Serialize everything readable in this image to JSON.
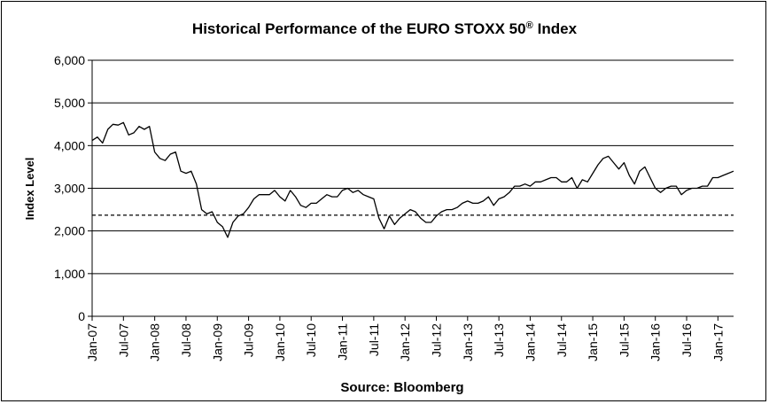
{
  "chart_data": {
    "type": "line",
    "title": "Historical Performance of the EURO STOXX 50",
    "title_superscript": "®",
    "title_suffix": "Index",
    "ylabel": "Index Level",
    "xlabel": "Source: Bloomberg",
    "ylim": [
      0,
      6000
    ],
    "y_ticks": [
      "0",
      "1,000",
      "2,000",
      "3,000",
      "4,000",
      "5,000",
      "6,000"
    ],
    "y_tick_values": [
      0,
      1000,
      2000,
      3000,
      4000,
      5000,
      6000
    ],
    "x_ticks": [
      "Jan-07",
      "Jul-07",
      "Jan-08",
      "Jul-08",
      "Jan-09",
      "Jul-09",
      "Jan-10",
      "Jul-10",
      "Jan-11",
      "Jul-11",
      "Jan-12",
      "Jul-12",
      "Jan-13",
      "Jul-13",
      "Jan-14",
      "Jul-14",
      "Jan-15",
      "Jul-15",
      "Jan-16",
      "Jul-16",
      "Jan-17"
    ],
    "x_range": [
      "2007-01",
      "2017-04"
    ],
    "grid": true,
    "reference_line": {
      "value": 2370,
      "style": "dashed"
    },
    "series": [
      {
        "points": [
          [
            "2007-01",
            4120
          ],
          [
            "2007-02",
            4200
          ],
          [
            "2007-03",
            4060
          ],
          [
            "2007-04",
            4380
          ],
          [
            "2007-05",
            4500
          ],
          [
            "2007-06",
            4480
          ],
          [
            "2007-07",
            4540
          ],
          [
            "2007-08",
            4250
          ],
          [
            "2007-09",
            4300
          ],
          [
            "2007-10",
            4450
          ],
          [
            "2007-11",
            4380
          ],
          [
            "2007-12",
            4450
          ],
          [
            "2008-01",
            3850
          ],
          [
            "2008-02",
            3700
          ],
          [
            "2008-03",
            3650
          ],
          [
            "2008-04",
            3800
          ],
          [
            "2008-05",
            3850
          ],
          [
            "2008-06",
            3400
          ],
          [
            "2008-07",
            3350
          ],
          [
            "2008-08",
            3400
          ],
          [
            "2008-09",
            3100
          ],
          [
            "2008-10",
            2500
          ],
          [
            "2008-11",
            2400
          ],
          [
            "2008-12",
            2450
          ],
          [
            "2009-01",
            2200
          ],
          [
            "2009-02",
            2100
          ],
          [
            "2009-03",
            1850
          ],
          [
            "2009-04",
            2200
          ],
          [
            "2009-05",
            2350
          ],
          [
            "2009-06",
            2400
          ],
          [
            "2009-07",
            2550
          ],
          [
            "2009-08",
            2750
          ],
          [
            "2009-09",
            2850
          ],
          [
            "2009-10",
            2850
          ],
          [
            "2009-11",
            2850
          ],
          [
            "2009-12",
            2950
          ],
          [
            "2010-01",
            2800
          ],
          [
            "2010-02",
            2700
          ],
          [
            "2010-03",
            2950
          ],
          [
            "2010-04",
            2800
          ],
          [
            "2010-05",
            2600
          ],
          [
            "2010-06",
            2550
          ],
          [
            "2010-07",
            2650
          ],
          [
            "2010-08",
            2650
          ],
          [
            "2010-09",
            2750
          ],
          [
            "2010-10",
            2850
          ],
          [
            "2010-11",
            2800
          ],
          [
            "2010-12",
            2800
          ],
          [
            "2011-01",
            2950
          ],
          [
            "2011-02",
            3000
          ],
          [
            "2011-03",
            2900
          ],
          [
            "2011-04",
            2950
          ],
          [
            "2011-05",
            2850
          ],
          [
            "2011-06",
            2800
          ],
          [
            "2011-07",
            2750
          ],
          [
            "2011-08",
            2300
          ],
          [
            "2011-09",
            2050
          ],
          [
            "2011-10",
            2350
          ],
          [
            "2011-11",
            2150
          ],
          [
            "2011-12",
            2300
          ],
          [
            "2012-01",
            2400
          ],
          [
            "2012-02",
            2500
          ],
          [
            "2012-03",
            2450
          ],
          [
            "2012-04",
            2300
          ],
          [
            "2012-05",
            2200
          ],
          [
            "2012-06",
            2200
          ],
          [
            "2012-07",
            2350
          ],
          [
            "2012-08",
            2450
          ],
          [
            "2012-09",
            2500
          ],
          [
            "2012-10",
            2500
          ],
          [
            "2012-11",
            2550
          ],
          [
            "2012-12",
            2650
          ],
          [
            "2013-01",
            2700
          ],
          [
            "2013-02",
            2650
          ],
          [
            "2013-03",
            2650
          ],
          [
            "2013-04",
            2700
          ],
          [
            "2013-05",
            2800
          ],
          [
            "2013-06",
            2600
          ],
          [
            "2013-07",
            2750
          ],
          [
            "2013-08",
            2800
          ],
          [
            "2013-09",
            2900
          ],
          [
            "2013-10",
            3050
          ],
          [
            "2013-11",
            3050
          ],
          [
            "2013-12",
            3100
          ],
          [
            "2014-01",
            3050
          ],
          [
            "2014-02",
            3150
          ],
          [
            "2014-03",
            3150
          ],
          [
            "2014-04",
            3200
          ],
          [
            "2014-05",
            3250
          ],
          [
            "2014-06",
            3250
          ],
          [
            "2014-07",
            3150
          ],
          [
            "2014-08",
            3150
          ],
          [
            "2014-09",
            3250
          ],
          [
            "2014-10",
            3000
          ],
          [
            "2014-11",
            3200
          ],
          [
            "2014-12",
            3150
          ],
          [
            "2015-01",
            3350
          ],
          [
            "2015-02",
            3550
          ],
          [
            "2015-03",
            3700
          ],
          [
            "2015-04",
            3750
          ],
          [
            "2015-05",
            3600
          ],
          [
            "2015-06",
            3450
          ],
          [
            "2015-07",
            3600
          ],
          [
            "2015-08",
            3300
          ],
          [
            "2015-09",
            3100
          ],
          [
            "2015-10",
            3400
          ],
          [
            "2015-11",
            3500
          ],
          [
            "2015-12",
            3250
          ],
          [
            "2016-01",
            3000
          ],
          [
            "2016-02",
            2900
          ],
          [
            "2016-03",
            3000
          ],
          [
            "2016-04",
            3050
          ],
          [
            "2016-05",
            3050
          ],
          [
            "2016-06",
            2850
          ],
          [
            "2016-07",
            2950
          ],
          [
            "2016-08",
            3000
          ],
          [
            "2016-09",
            3000
          ],
          [
            "2016-10",
            3050
          ],
          [
            "2016-11",
            3050
          ],
          [
            "2016-12",
            3250
          ],
          [
            "2017-01",
            3250
          ],
          [
            "2017-02",
            3300
          ],
          [
            "2017-03",
            3350
          ],
          [
            "2017-04",
            3400
          ]
        ]
      }
    ]
  }
}
